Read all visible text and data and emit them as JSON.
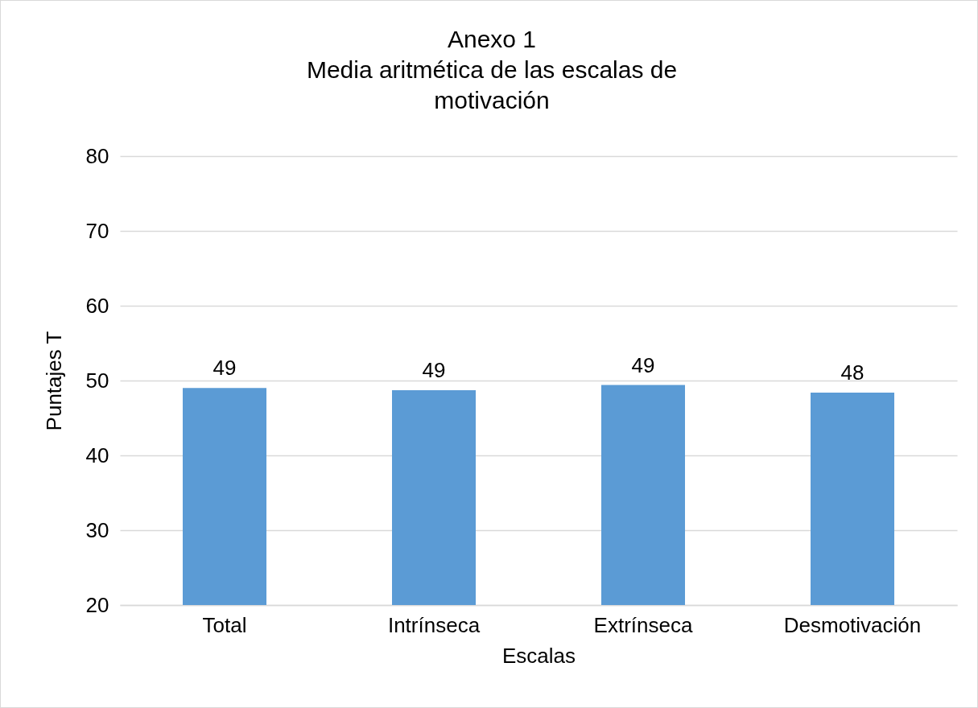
{
  "chart_data": {
    "type": "bar",
    "title": "Anexo 1\nMedia aritmética de las escalas de\nmotivación",
    "xlabel": "Escalas",
    "ylabel": "Puntajes T",
    "categories": [
      "Total",
      "Intrínseca",
      "Extrínseca",
      "Desmotivación"
    ],
    "values": [
      49.0,
      48.7,
      49.4,
      48.4
    ],
    "value_labels": [
      "49",
      "49",
      "49",
      "48"
    ],
    "color": "#5b9bd5",
    "ylim": [
      20,
      80
    ],
    "yticks": [
      20,
      30,
      40,
      50,
      60,
      70,
      80
    ],
    "grid": "y"
  }
}
